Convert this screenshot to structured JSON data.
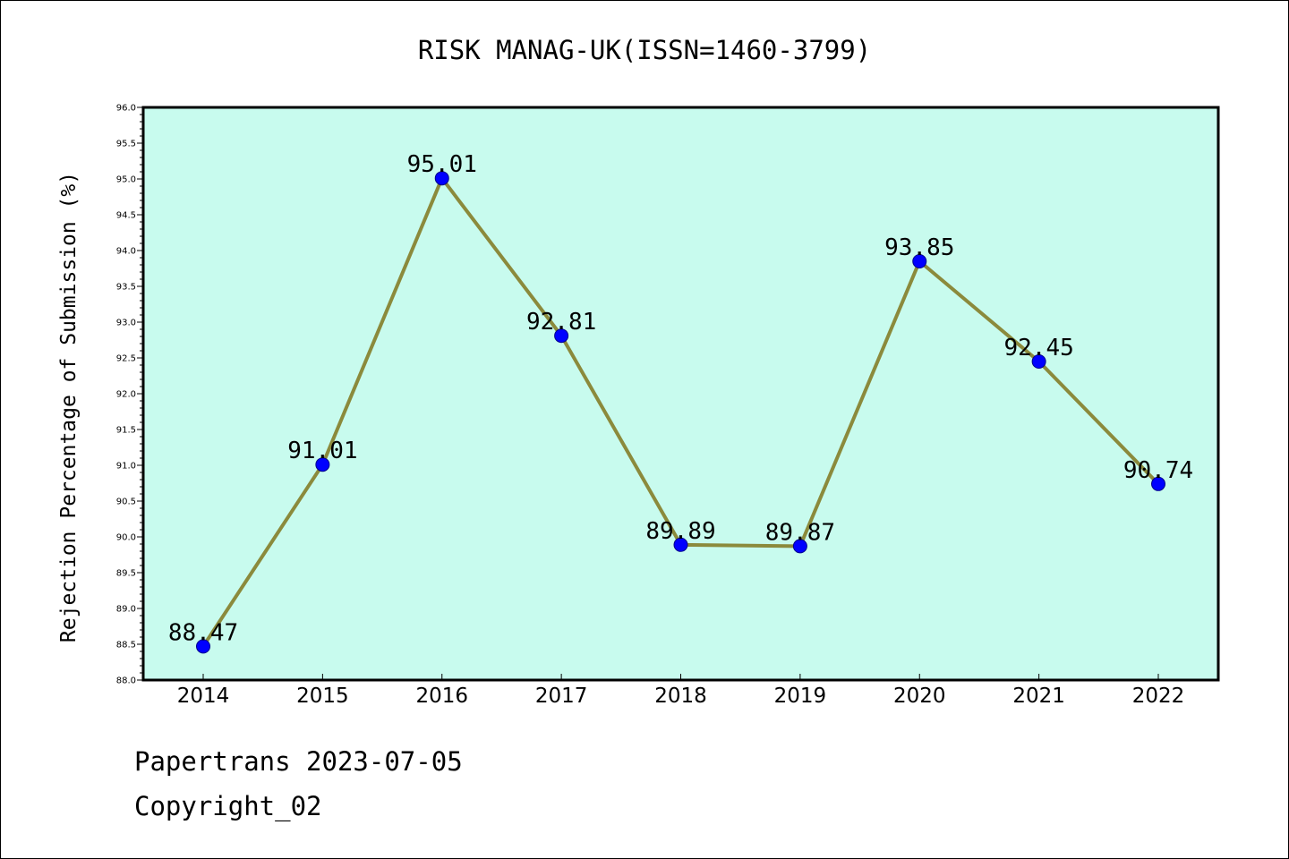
{
  "chart_data": {
    "type": "line",
    "title": "RISK MANAG-UK(ISSN=1460-3799)",
    "xlabel": "",
    "ylabel": "Rejection Percentage of Submission (%)",
    "categories": [
      "2014",
      "2015",
      "2016",
      "2017",
      "2018",
      "2019",
      "2020",
      "2021",
      "2022"
    ],
    "series": [
      {
        "values": [
          88.47,
          91.01,
          95.01,
          92.81,
          89.89,
          89.87,
          93.85,
          92.45,
          90.74
        ],
        "labels": [
          "88.47",
          "91.01",
          "95.01",
          "92.81",
          "89.89",
          "89.87",
          "93.85",
          "92.45",
          "90.74"
        ]
      }
    ],
    "ylim": [
      88.0,
      96.0
    ],
    "yticks": [
      "88.0",
      "88.5",
      "89.0",
      "89.5",
      "90.0",
      "90.5",
      "91.0",
      "91.5",
      "92.0",
      "92.5",
      "93.0",
      "93.5",
      "94.0",
      "94.5",
      "95.0",
      "95.5",
      "96.0"
    ],
    "grid": false,
    "colors": {
      "plot_background": "#c8fbee",
      "line": "#8b8a3c",
      "marker": "#0000ff",
      "marker_edge": "#00008b"
    }
  },
  "footer": {
    "line1": "Papertrans 2023-07-05",
    "line2": "Copyright_02"
  }
}
